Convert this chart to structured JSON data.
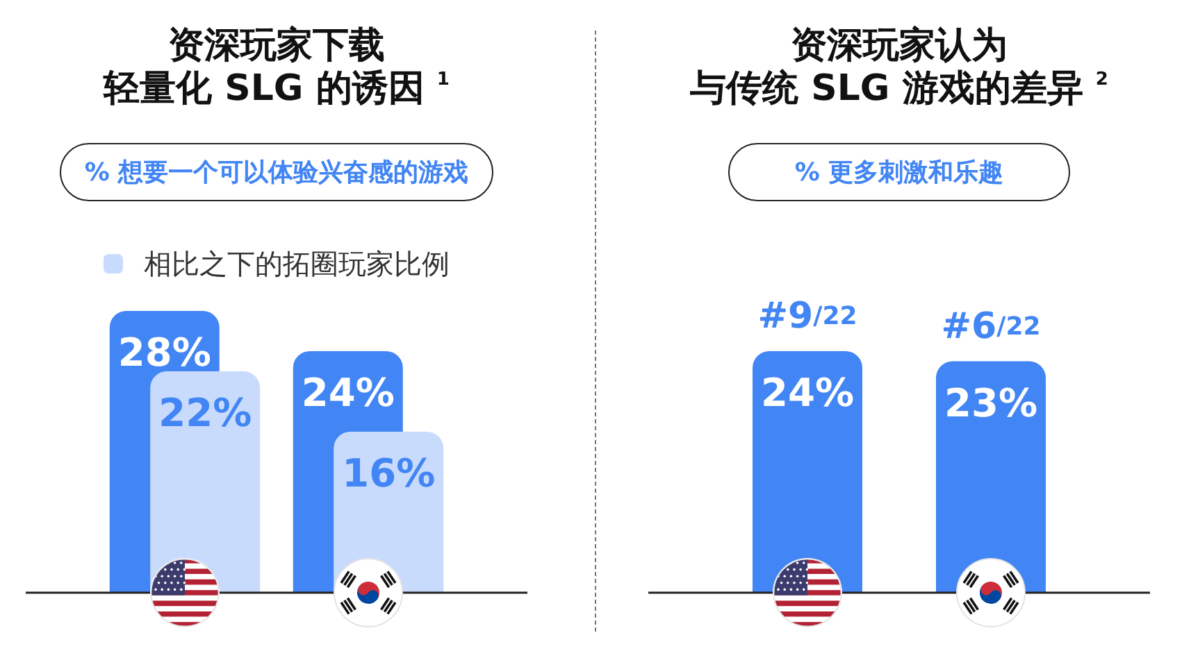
{
  "chart_data": [
    {
      "type": "bar",
      "title": "资深玩家下载轻量化 SLG 的诱因 $^{1}$",
      "subtitle": "% 想要一个可以体验兴奋感的游戏",
      "categories": [
        null,
        null
      ],
      "series": [
        {
          "color": "#4285f4",
          "values": [
            28,
            24
          ],
          "value_labels": [
            "28%",
            "24%"
          ]
        },
        {
          "name": "相比之下的拓圈玩家比例",
          "color": "#c9dbfc",
          "values": [
            22,
            16
          ],
          "value_labels": [
            "22%",
            "16%"
          ]
        }
      ],
      "legend": "top",
      "tick_labels": false
    },
    {
      "type": "bar",
      "title": "资深玩家认为与传统 SLG 游戏的差异 $^{2}$",
      "subtitle": "% 更多刺激和乐趣",
      "categories": [
        null,
        null
      ],
      "values": [
        24,
        23
      ],
      "value_labels": [
        "24%",
        "23%"
      ],
      "color": "#4285f4",
      "annotations": [
        {
          "text": "#9/22",
          "y": 24
        },
        {
          "text": "#6/22",
          "y": 23
        }
      ],
      "tick_labels": false
    }
  ]
}
